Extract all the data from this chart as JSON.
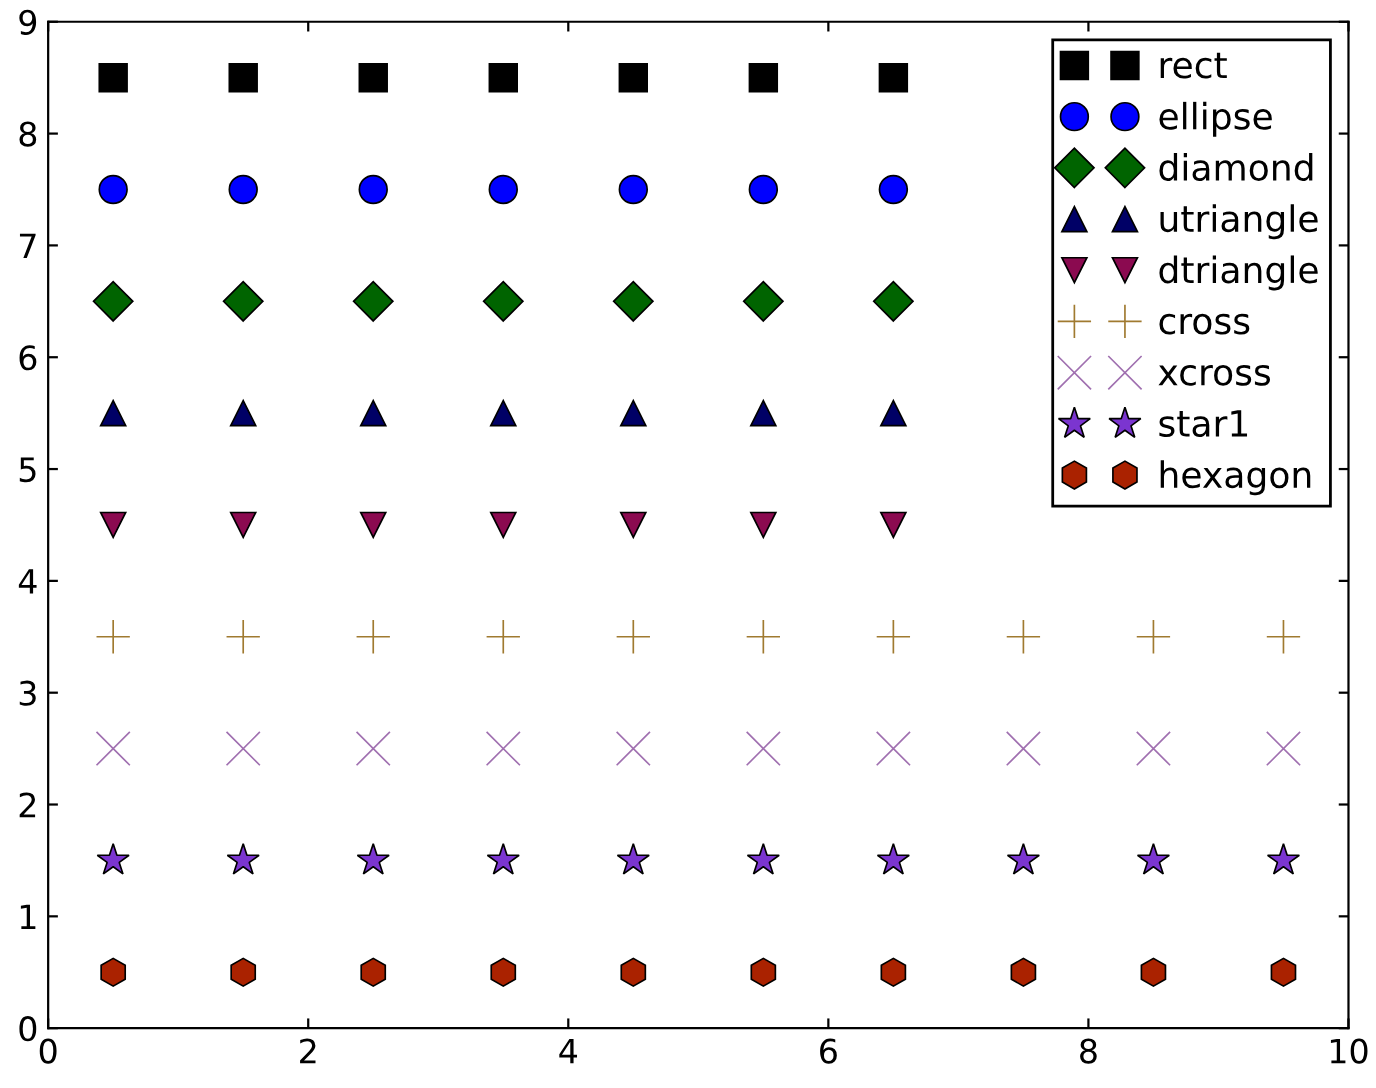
{
  "chart_data": {
    "type": "scatter",
    "x": [
      0.5,
      1.5,
      2.5,
      3.5,
      4.5,
      5.5,
      6.5,
      7.5,
      8.5,
      9.5
    ],
    "series": [
      {
        "name": "rect",
        "color": "#000000",
        "marker": "square",
        "values": [
          8.5,
          8.5,
          8.5,
          8.5,
          8.5,
          8.5,
          8.5,
          null,
          null,
          null
        ]
      },
      {
        "name": "ellipse",
        "color": "#0000ff",
        "marker": "circle",
        "values": [
          7.5,
          7.5,
          7.5,
          7.5,
          7.5,
          7.5,
          7.5,
          null,
          null,
          null
        ]
      },
      {
        "name": "diamond",
        "color": "#006400",
        "marker": "diamond",
        "values": [
          6.5,
          6.5,
          6.5,
          6.5,
          6.5,
          6.5,
          6.5,
          null,
          null,
          null
        ]
      },
      {
        "name": "utriangle",
        "color": "#000066",
        "marker": "triangle",
        "values": [
          5.5,
          5.5,
          5.5,
          5.5,
          5.5,
          5.5,
          5.5,
          null,
          null,
          null
        ]
      },
      {
        "name": "dtriangle",
        "color": "#8b0a50",
        "marker": "triangle_down",
        "values": [
          4.5,
          4.5,
          4.5,
          4.5,
          4.5,
          4.5,
          4.5,
          null,
          null,
          null
        ]
      },
      {
        "name": "cross",
        "color": "#a07a30",
        "marker": "cross",
        "values": [
          3.5,
          3.5,
          3.5,
          3.5,
          3.5,
          3.5,
          3.5,
          3.5,
          3.5,
          3.5
        ]
      },
      {
        "name": "xcross",
        "color": "#a070b0",
        "marker": "x",
        "values": [
          2.5,
          2.5,
          2.5,
          2.5,
          2.5,
          2.5,
          2.5,
          2.5,
          2.5,
          2.5
        ]
      },
      {
        "name": "star1",
        "color": "#7b35d0",
        "marker": "star",
        "values": [
          1.5,
          1.5,
          1.5,
          1.5,
          1.5,
          1.5,
          1.5,
          1.5,
          1.5,
          1.5
        ]
      },
      {
        "name": "hexagon",
        "color": "#aa2200",
        "values": [
          0.5,
          0.5,
          0.5,
          0.5,
          0.5,
          0.5,
          0.5,
          0.5,
          0.5,
          0.5
        ]
      }
    ],
    "xlim": [
      0,
      10
    ],
    "xticks": [
      0,
      2,
      4,
      6,
      8,
      10
    ],
    "ylim": [
      0,
      9
    ],
    "yticks": [
      0,
      1,
      2,
      3,
      4,
      5,
      6,
      7,
      8,
      9
    ],
    "grid": false,
    "legend": "top right"
  }
}
